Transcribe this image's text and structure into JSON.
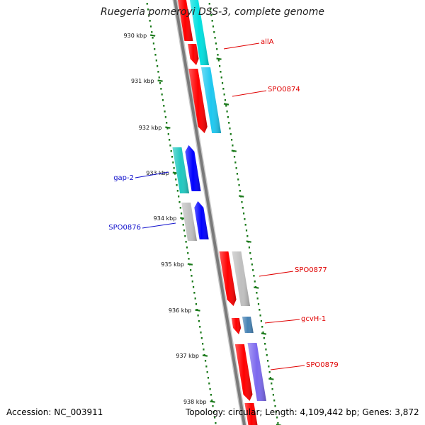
{
  "title": "Ruegeria pomeroyi DSS-3, complete genome",
  "footer": {
    "accession": "Accession: NC_003911",
    "stats": "Topology: circular; Length: 4,109,442 bp; Genes: 3,872"
  },
  "colors": {
    "backbone": "#7a7a7a",
    "scale_dots": "#1b7a1b",
    "red_label": "#e00000",
    "blue_label": "#1010cc"
  },
  "ticks": [
    {
      "label": "930 kbp"
    },
    {
      "label": "931 kbp"
    },
    {
      "label": "932 kbp"
    },
    {
      "label": "933 kbp"
    },
    {
      "label": "934 kbp"
    },
    {
      "label": "935 kbp"
    },
    {
      "label": "936 kbp"
    },
    {
      "label": "937 kbp"
    },
    {
      "label": "938 kbp"
    }
  ],
  "gene_labels": [
    {
      "text": "allA",
      "color": "#e00000"
    },
    {
      "text": "SPO0874",
      "color": "#e00000"
    },
    {
      "text": "gap-2",
      "color": "#1010cc"
    },
    {
      "text": "SPO0876",
      "color": "#1010cc"
    },
    {
      "text": "SPO0877",
      "color": "#e00000"
    },
    {
      "text": "gcvH-1",
      "color": "#e00000"
    },
    {
      "text": "SPO0879",
      "color": "#e00000"
    }
  ],
  "features": [
    {
      "strand": "forward",
      "color": "#ff0000",
      "kind": "cds"
    },
    {
      "strand": "forward",
      "color": "#00e0e0",
      "kind": "gene"
    },
    {
      "strand": "forward",
      "color": "#ff0000",
      "kind": "cds"
    },
    {
      "strand": "forward",
      "color": "#ff0000",
      "kind": "cds"
    },
    {
      "strand": "forward",
      "color": "#1ec8f0",
      "kind": "gene"
    },
    {
      "strand": "reverse",
      "color": "#20c8c0",
      "kind": "gene"
    },
    {
      "strand": "reverse",
      "color": "#0000ff",
      "kind": "cds"
    },
    {
      "strand": "reverse",
      "color": "#c0c0c0",
      "kind": "gene"
    },
    {
      "strand": "reverse",
      "color": "#0000ff",
      "kind": "cds"
    },
    {
      "strand": "forward",
      "color": "#ff0000",
      "kind": "cds"
    },
    {
      "strand": "forward",
      "color": "#c0c0c0",
      "kind": "gene"
    },
    {
      "strand": "forward",
      "color": "#ff0000",
      "kind": "cds"
    },
    {
      "strand": "forward",
      "color": "#4682b4",
      "kind": "gene"
    },
    {
      "strand": "forward",
      "color": "#ff0000",
      "kind": "cds"
    },
    {
      "strand": "forward",
      "color": "#7b68ee",
      "kind": "gene"
    },
    {
      "strand": "forward",
      "color": "#ff0000",
      "kind": "cds"
    }
  ]
}
